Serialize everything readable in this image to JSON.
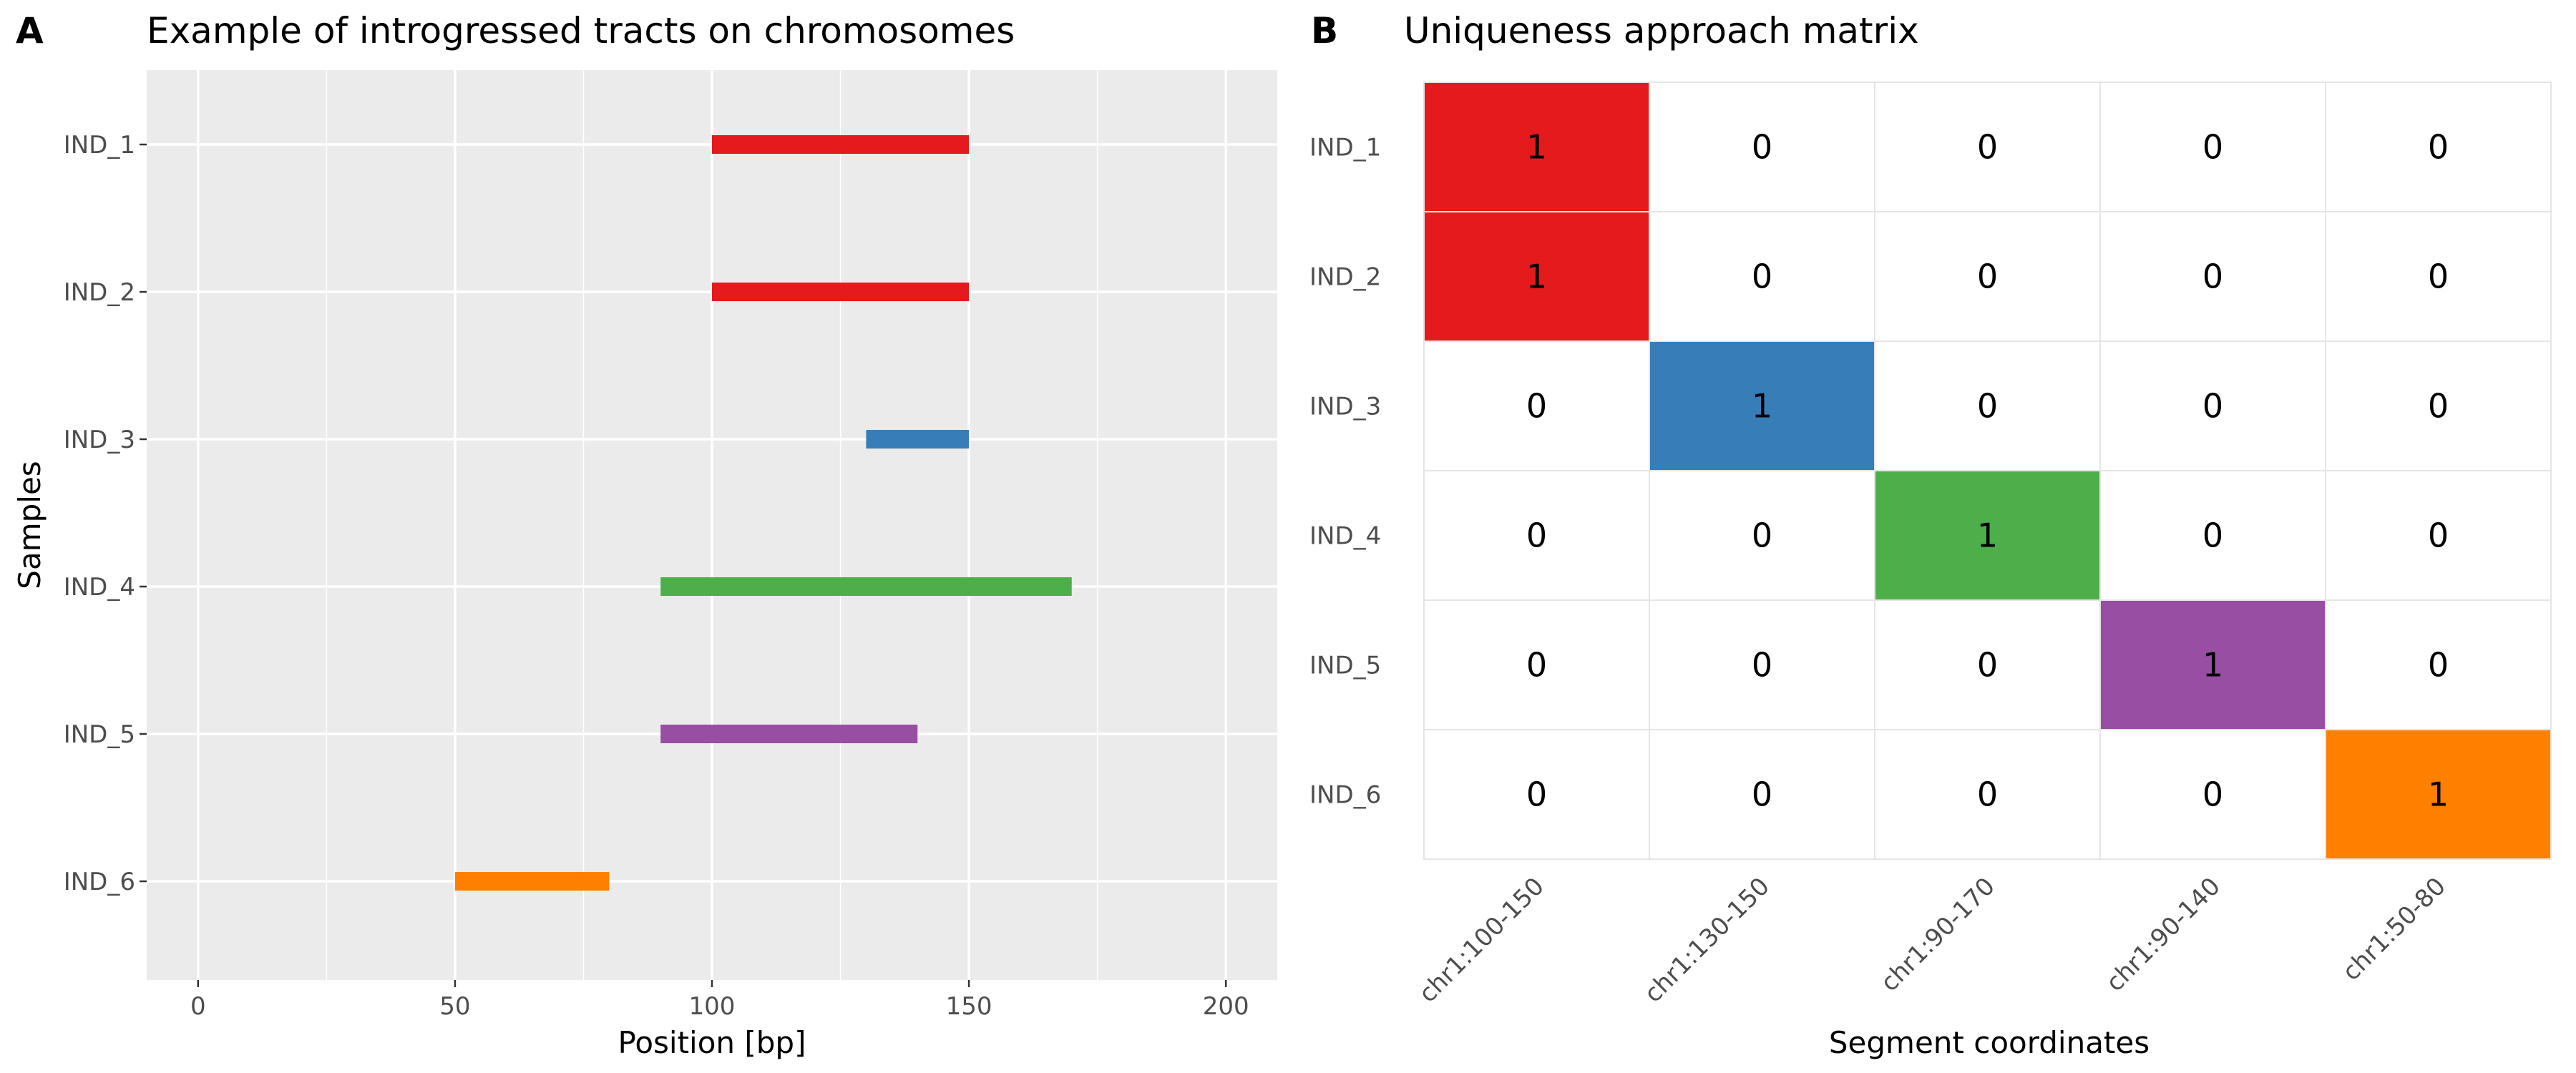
{
  "chart_data": [
    {
      "panel_label": "A",
      "type": "bar",
      "title": "Example of introgressed tracts on chromosomes",
      "xlabel": "Position [bp]",
      "ylabel": "Samples",
      "xlim": [
        -10,
        210
      ],
      "xticks": [
        0,
        50,
        100,
        150,
        200
      ],
      "grid": true,
      "categories": [
        "IND_1",
        "IND_2",
        "IND_3",
        "IND_4",
        "IND_5",
        "IND_6"
      ],
      "tracts": [
        {
          "sample": "IND_1",
          "start": 100,
          "end": 150,
          "color": "#E41A1C"
        },
        {
          "sample": "IND_2",
          "start": 100,
          "end": 150,
          "color": "#E41A1C"
        },
        {
          "sample": "IND_3",
          "start": 130,
          "end": 150,
          "color": "#377EB8"
        },
        {
          "sample": "IND_4",
          "start": 90,
          "end": 170,
          "color": "#4DAF4A"
        },
        {
          "sample": "IND_5",
          "start": 90,
          "end": 140,
          "color": "#984EA3"
        },
        {
          "sample": "IND_6",
          "start": 50,
          "end": 80,
          "color": "#FF7F00"
        }
      ]
    },
    {
      "panel_label": "B",
      "type": "heatmap",
      "title": "Uniqueness approach matrix",
      "xlabel": "Segment coordinates",
      "ylabel": "",
      "rows": [
        "IND_1",
        "IND_2",
        "IND_3",
        "IND_4",
        "IND_5",
        "IND_6"
      ],
      "columns": [
        "chr1:100-150",
        "chr1:130-150",
        "chr1:90-170",
        "chr1:90-140",
        "chr1:50-80"
      ],
      "column_colors": [
        "#E41A1C",
        "#377EB8",
        "#4DAF4A",
        "#984EA3",
        "#FF7F00"
      ],
      "values": [
        [
          1,
          0,
          0,
          0,
          0
        ],
        [
          1,
          0,
          0,
          0,
          0
        ],
        [
          0,
          1,
          0,
          0,
          0
        ],
        [
          0,
          0,
          1,
          0,
          0
        ],
        [
          0,
          0,
          0,
          1,
          0
        ],
        [
          0,
          0,
          0,
          0,
          1
        ]
      ]
    }
  ]
}
